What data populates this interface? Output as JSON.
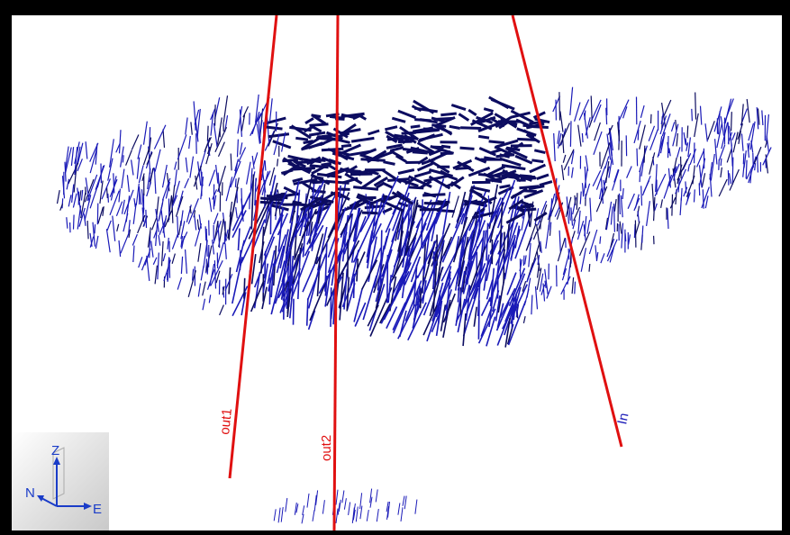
{
  "wells": [
    {
      "label": "out1",
      "color": "#e01010"
    },
    {
      "label": "out2",
      "color": "#e01010"
    },
    {
      "label": "In",
      "color": "#e01010"
    }
  ],
  "vector_field": {
    "color": "#1a1ab8",
    "dark_color": "#0c0c60"
  },
  "orientation": {
    "axes": [
      {
        "label": "Z"
      },
      {
        "label": "N"
      },
      {
        "label": "E"
      }
    ],
    "axis_color": "#1a3cc8"
  }
}
